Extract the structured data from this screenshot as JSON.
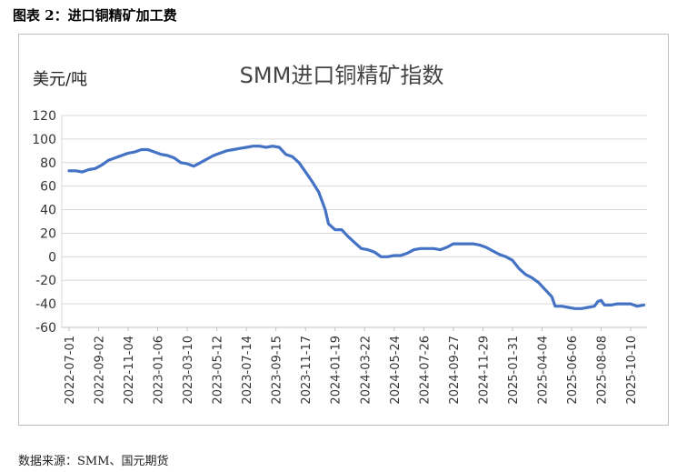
{
  "figure": {
    "caption": "图表 2：进口铜精矿加工费",
    "source": "数据来源：SMM、国元期货"
  },
  "chart_data": {
    "type": "line",
    "title": "SMM进口铜精矿指数",
    "ylabel": "美元/吨",
    "xlabel": "",
    "ylim": [
      -60,
      120
    ],
    "yticks": [
      -60,
      -40,
      -20,
      0,
      20,
      40,
      60,
      80,
      100,
      120
    ],
    "grid": true,
    "legend": "none",
    "line_color": "#4472c4",
    "x_ticks": [
      "2022-07-01",
      "2022-09-02",
      "2022-11-04",
      "2023-01-06",
      "2023-03-10",
      "2023-05-12",
      "2023-07-14",
      "2023-09-15",
      "2023-11-17",
      "2024-01-19",
      "2024-03-22",
      "2024-05-24",
      "2024-07-26",
      "2024-09-27",
      "2024-11-29",
      "2025-01-31",
      "2025-04-04",
      "2025-06-06",
      "2025-08-08",
      "2025-10-10"
    ],
    "series": [
      {
        "points": [
          [
            "2022-07-01",
            73
          ],
          [
            "2022-07-15",
            73
          ],
          [
            "2022-07-29",
            72
          ],
          [
            "2022-08-12",
            74
          ],
          [
            "2022-08-26",
            75
          ],
          [
            "2022-09-09",
            78
          ],
          [
            "2022-09-23",
            82
          ],
          [
            "2022-10-07",
            84
          ],
          [
            "2022-10-21",
            86
          ],
          [
            "2022-11-04",
            88
          ],
          [
            "2022-11-18",
            89
          ],
          [
            "2022-12-02",
            91
          ],
          [
            "2022-12-16",
            91
          ],
          [
            "2022-12-30",
            89
          ],
          [
            "2023-01-13",
            87
          ],
          [
            "2023-01-27",
            86
          ],
          [
            "2023-02-10",
            84
          ],
          [
            "2023-02-24",
            80
          ],
          [
            "2023-03-10",
            79
          ],
          [
            "2023-03-24",
            77
          ],
          [
            "2023-04-07",
            80
          ],
          [
            "2023-04-21",
            83
          ],
          [
            "2023-05-05",
            86
          ],
          [
            "2023-05-19",
            88
          ],
          [
            "2023-06-02",
            90
          ],
          [
            "2023-06-16",
            91
          ],
          [
            "2023-06-30",
            92
          ],
          [
            "2023-07-14",
            93
          ],
          [
            "2023-07-28",
            94
          ],
          [
            "2023-08-11",
            94
          ],
          [
            "2023-08-25",
            93
          ],
          [
            "2023-09-08",
            94
          ],
          [
            "2023-09-22",
            93
          ],
          [
            "2023-10-06",
            87
          ],
          [
            "2023-10-20",
            85
          ],
          [
            "2023-11-03",
            80
          ],
          [
            "2023-11-17",
            72
          ],
          [
            "2023-12-01",
            64
          ],
          [
            "2023-12-15",
            55
          ],
          [
            "2023-12-29",
            40
          ],
          [
            "2024-01-05",
            28
          ],
          [
            "2024-01-19",
            23
          ],
          [
            "2024-02-02",
            23
          ],
          [
            "2024-02-16",
            17
          ],
          [
            "2024-03-01",
            12
          ],
          [
            "2024-03-15",
            7
          ],
          [
            "2024-03-29",
            6
          ],
          [
            "2024-04-12",
            4
          ],
          [
            "2024-04-26",
            0
          ],
          [
            "2024-05-10",
            0
          ],
          [
            "2024-05-24",
            1
          ],
          [
            "2024-06-07",
            1
          ],
          [
            "2024-06-21",
            3
          ],
          [
            "2024-07-05",
            6
          ],
          [
            "2024-07-19",
            7
          ],
          [
            "2024-08-02",
            7
          ],
          [
            "2024-08-16",
            7
          ],
          [
            "2024-08-30",
            6
          ],
          [
            "2024-09-13",
            8
          ],
          [
            "2024-09-27",
            11
          ],
          [
            "2024-10-11",
            11
          ],
          [
            "2024-10-25",
            11
          ],
          [
            "2024-11-08",
            11
          ],
          [
            "2024-11-22",
            10
          ],
          [
            "2024-12-06",
            8
          ],
          [
            "2024-12-20",
            5
          ],
          [
            "2025-01-03",
            2
          ],
          [
            "2025-01-17",
            0
          ],
          [
            "2025-01-31",
            -3
          ],
          [
            "2025-02-14",
            -10
          ],
          [
            "2025-02-28",
            -15
          ],
          [
            "2025-03-14",
            -18
          ],
          [
            "2025-03-28",
            -22
          ],
          [
            "2025-04-11",
            -28
          ],
          [
            "2025-04-25",
            -34
          ],
          [
            "2025-05-02",
            -42
          ],
          [
            "2025-05-16",
            -42
          ],
          [
            "2025-05-30",
            -43
          ],
          [
            "2025-06-13",
            -44
          ],
          [
            "2025-06-27",
            -44
          ],
          [
            "2025-07-11",
            -43
          ],
          [
            "2025-07-25",
            -42
          ],
          [
            "2025-08-01",
            -38
          ],
          [
            "2025-08-08",
            -37
          ],
          [
            "2025-08-15",
            -41
          ],
          [
            "2025-08-29",
            -41
          ],
          [
            "2025-09-12",
            -40
          ],
          [
            "2025-09-26",
            -40
          ],
          [
            "2025-10-10",
            -40
          ],
          [
            "2025-10-24",
            -42
          ],
          [
            "2025-11-07",
            -41
          ]
        ]
      }
    ]
  }
}
